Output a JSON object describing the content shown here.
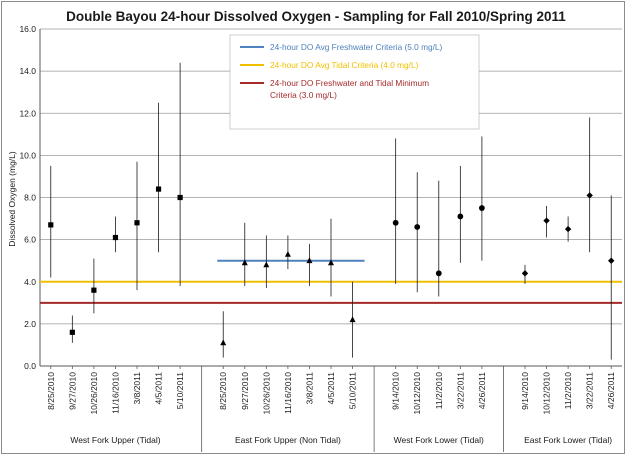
{
  "chart_data": {
    "type": "scatter",
    "title": "Double Bayou 24-hour Dissolved Oxygen  -  Sampling for Fall 2010/Spring 2011",
    "ylabel": "Dissolved Oxygen (mg/L)",
    "xlabel": "",
    "ylim": [
      0,
      16
    ],
    "yticks": [
      "0.0",
      "2.0",
      "4.0",
      "6.0",
      "8.0",
      "10.0",
      "12.0",
      "14.0",
      "16.0"
    ],
    "grid": true,
    "legend_position": "top-right",
    "groups": [
      {
        "name": "West Fork Upper (Tidal)",
        "marker": "square",
        "points": [
          {
            "x": "8/25/2010",
            "y": 6.7,
            "min": 4.2,
            "max": 9.5
          },
          {
            "x": "9/27/2010",
            "y": 1.6,
            "min": 1.1,
            "max": 2.4
          },
          {
            "x": "10/26/2010",
            "y": 3.6,
            "min": 2.5,
            "max": 5.1
          },
          {
            "x": "11/16/2010",
            "y": 6.1,
            "min": 5.4,
            "max": 7.1
          },
          {
            "x": "3/8/2011",
            "y": 6.8,
            "min": 3.6,
            "max": 9.7
          },
          {
            "x": "4/5/2011",
            "y": 8.4,
            "min": 5.4,
            "max": 12.5
          },
          {
            "x": "5/10/2011",
            "y": 8.0,
            "min": 3.8,
            "max": 14.4
          }
        ]
      },
      {
        "name": "East Fork Upper (Non Tidal)",
        "marker": "triangle",
        "points": [
          {
            "x": "8/25/2010",
            "y": 1.1,
            "min": 0.4,
            "max": 2.6
          },
          {
            "x": "9/27/2010",
            "y": 4.9,
            "min": 3.8,
            "max": 6.8
          },
          {
            "x": "10/26/2010",
            "y": 4.8,
            "min": 3.7,
            "max": 6.2
          },
          {
            "x": "11/16/2010",
            "y": 5.3,
            "min": 4.6,
            "max": 6.2
          },
          {
            "x": "3/8/2011",
            "y": 5.0,
            "min": 3.8,
            "max": 5.8
          },
          {
            "x": "4/5/2011",
            "y": 4.9,
            "min": 3.3,
            "max": 7.0
          },
          {
            "x": "5/10/2011",
            "y": 2.2,
            "min": 0.4,
            "max": 4.0
          }
        ]
      },
      {
        "name": "West Fork Lower (Tidal)",
        "marker": "circle",
        "points": [
          {
            "x": "9/14/2010",
            "y": 6.8,
            "min": 3.9,
            "max": 10.8
          },
          {
            "x": "10/12/2010",
            "y": 6.6,
            "min": 3.5,
            "max": 9.2
          },
          {
            "x": "11/2/2010",
            "y": 4.4,
            "min": 3.3,
            "max": 8.8
          },
          {
            "x": "3/22/2011",
            "y": 7.1,
            "min": 4.9,
            "max": 9.5
          },
          {
            "x": "4/26/2011",
            "y": 7.5,
            "min": 5.0,
            "max": 10.9
          }
        ]
      },
      {
        "name": "East Fork Lower (Tidal)",
        "marker": "diamond",
        "points": [
          {
            "x": "9/14/2010",
            "y": 4.4,
            "min": 3.9,
            "max": 4.8
          },
          {
            "x": "10/12/2010",
            "y": 6.9,
            "min": 6.1,
            "max": 7.6
          },
          {
            "x": "11/2/2010",
            "y": 6.5,
            "min": 5.9,
            "max": 7.1
          },
          {
            "x": "3/22/2011",
            "y": 8.1,
            "min": 5.4,
            "max": 11.8
          },
          {
            "x": "4/26/2011",
            "y": 5.0,
            "min": 0.3,
            "max": 8.1
          }
        ]
      }
    ],
    "criteria": [
      {
        "name": "24-hour DO Avg Freshwater Criteria (5.0 mg/L)",
        "label_lines": [
          "24-hour DO Avg Freshwater Criteria (5.0 mg/L)"
        ],
        "value": 5.0,
        "color": "#4f81bd",
        "applies_to": "East Fork Upper (Non Tidal)"
      },
      {
        "name": "24-hour DO Avg Tidal Criteria (4.0 mg/L)",
        "label_lines": [
          "24-hour DO Avg Tidal Criteria (4.0 mg/L)"
        ],
        "value": 4.0,
        "color": "#f0c000",
        "applies_to": "all"
      },
      {
        "name": "24-hour DO Freshwater and Tidal Minimum Criteria (3.0 mg/L)",
        "label_lines": [
          "24-hour DO Freshwater  and Tidal Minimum",
          "Criteria (3.0 mg/L)"
        ],
        "value": 3.0,
        "color": "#a52a2a",
        "applies_to": "all"
      }
    ]
  }
}
